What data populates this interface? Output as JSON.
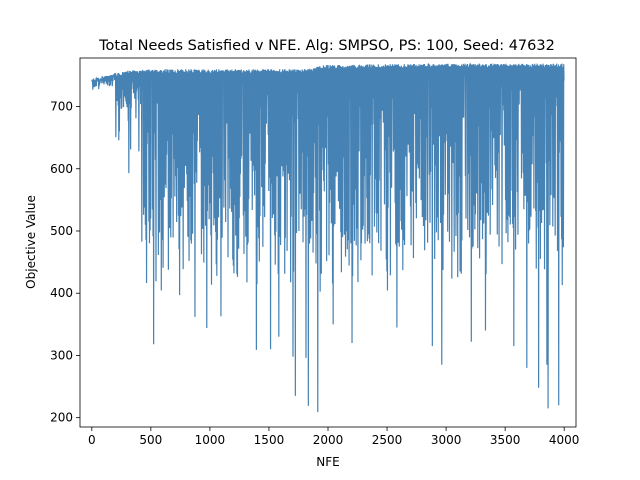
{
  "chart_data": {
    "type": "line",
    "title": "Total Needs Satisfied v NFE. Alg: SMPSO, PS: 100, Seed: 47632",
    "xlabel": "NFE",
    "ylabel": "Objective Value",
    "xlim": [
      -100,
      4100
    ],
    "ylim": [
      185,
      778
    ],
    "xticks": [
      0,
      500,
      1000,
      1500,
      2000,
      2500,
      3000,
      3500,
      4000
    ],
    "yticks": [
      200,
      300,
      400,
      500,
      600,
      700
    ],
    "grid": false,
    "legend": "none",
    "series": [
      {
        "color": "#4682b4",
        "x_range": [
          1,
          4000
        ],
        "upper_envelope": [
          [
            0,
            745
          ],
          [
            100,
            748
          ],
          [
            200,
            754
          ],
          [
            300,
            758
          ],
          [
            500,
            760
          ],
          [
            1000,
            760
          ],
          [
            1500,
            760
          ],
          [
            1800,
            760
          ],
          [
            1860,
            763
          ],
          [
            2000,
            767
          ],
          [
            2500,
            768
          ],
          [
            3000,
            769
          ],
          [
            3500,
            769
          ],
          [
            4000,
            769
          ]
        ],
        "notable_minima": [
          {
            "x": 230,
            "y": 660
          },
          {
            "x": 310,
            "y": 593
          },
          {
            "x": 420,
            "y": 483
          },
          {
            "x": 520,
            "y": 318
          },
          {
            "x": 740,
            "y": 397
          },
          {
            "x": 870,
            "y": 362
          },
          {
            "x": 970,
            "y": 344
          },
          {
            "x": 1090,
            "y": 363
          },
          {
            "x": 1390,
            "y": 309
          },
          {
            "x": 1510,
            "y": 310
          },
          {
            "x": 1580,
            "y": 330
          },
          {
            "x": 1700,
            "y": 298
          },
          {
            "x": 1720,
            "y": 235
          },
          {
            "x": 1810,
            "y": 296
          },
          {
            "x": 1830,
            "y": 219
          },
          {
            "x": 1910,
            "y": 209
          },
          {
            "x": 2040,
            "y": 350
          },
          {
            "x": 2200,
            "y": 320
          },
          {
            "x": 2580,
            "y": 345
          },
          {
            "x": 2880,
            "y": 315
          },
          {
            "x": 2960,
            "y": 285
          },
          {
            "x": 3210,
            "y": 322
          },
          {
            "x": 3330,
            "y": 340
          },
          {
            "x": 3570,
            "y": 315
          },
          {
            "x": 3680,
            "y": 280
          },
          {
            "x": 3780,
            "y": 248
          },
          {
            "x": 3850,
            "y": 285
          },
          {
            "x": 3860,
            "y": 215
          },
          {
            "x": 3950,
            "y": 220
          }
        ]
      }
    ]
  }
}
